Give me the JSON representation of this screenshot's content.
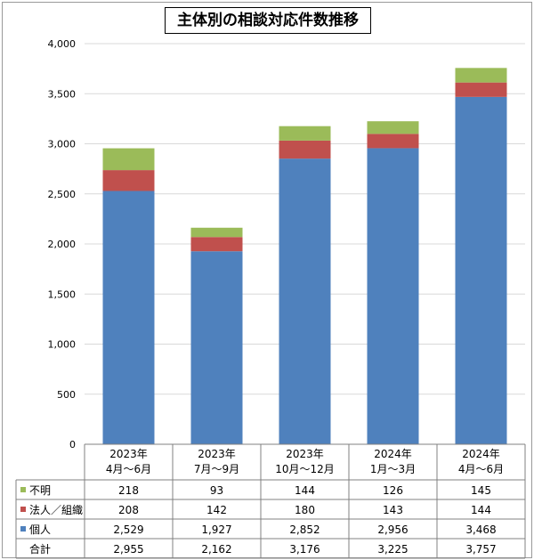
{
  "title": "主体別の相談対応件数推移",
  "colors": {
    "individual": "#4f81bd",
    "corporate": "#c0504d",
    "unknown": "#9bbb59",
    "grid": "#d9d9d9",
    "border": "#808080"
  },
  "chart_data": {
    "type": "bar",
    "stacked": true,
    "title": "主体別の相談対応件数推移",
    "categories": [
      [
        "2023年",
        "4月～6月"
      ],
      [
        "2023年",
        "7月～9月"
      ],
      [
        "2023年",
        "10月～12月"
      ],
      [
        "2024年",
        "1月～3月"
      ],
      [
        "2024年",
        "4月～6月"
      ]
    ],
    "series": [
      {
        "name": "個人",
        "color_key": "individual",
        "values": [
          2529,
          1927,
          2852,
          2956,
          3468
        ]
      },
      {
        "name": "法人／組織",
        "color_key": "corporate",
        "values": [
          208,
          142,
          180,
          143,
          144
        ]
      },
      {
        "name": "不明",
        "color_key": "unknown",
        "values": [
          218,
          93,
          144,
          126,
          145
        ]
      }
    ],
    "ylim": [
      0,
      4000
    ],
    "yticks": [
      0,
      500,
      1000,
      1500,
      2000,
      2500,
      3000,
      3500,
      4000
    ],
    "ytick_labels": [
      "0",
      "500",
      "1,000",
      "1,500",
      "2,000",
      "2,500",
      "3,000",
      "3,500",
      "4,000"
    ],
    "grid": true,
    "legend": "data-table"
  },
  "table": {
    "rows": [
      {
        "label": "不明",
        "color_key": "unknown",
        "values": [
          "218",
          "93",
          "144",
          "126",
          "145"
        ]
      },
      {
        "label": "法人／組織",
        "color_key": "corporate",
        "values": [
          "208",
          "142",
          "180",
          "143",
          "144"
        ]
      },
      {
        "label": "個人",
        "color_key": "individual",
        "values": [
          "2,529",
          "1,927",
          "2,852",
          "2,956",
          "3,468"
        ]
      },
      {
        "label": "合計",
        "color_key": null,
        "values": [
          "2,955",
          "2,162",
          "3,176",
          "3,225",
          "3,757"
        ]
      }
    ]
  }
}
